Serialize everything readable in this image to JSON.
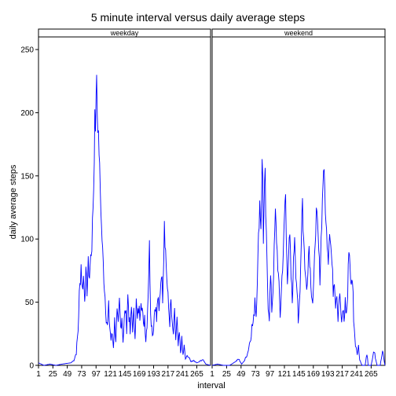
{
  "chart_data": {
    "type": "line",
    "title": "5 minute interval versus daily average steps",
    "xlabel": "interval",
    "ylabel": "daily average steps",
    "xlim": [
      1,
      288
    ],
    "ylim": [
      0,
      255
    ],
    "x_ticks": [
      1,
      25,
      49,
      73,
      97,
      121,
      145,
      169,
      193,
      217,
      241,
      265
    ],
    "y_ticks": [
      0,
      50,
      100,
      150,
      200,
      250
    ],
    "color": "#0000ff",
    "panels": [
      {
        "name": "weekday",
        "anchors": [
          [
            1,
            2
          ],
          [
            10,
            0
          ],
          [
            20,
            1
          ],
          [
            30,
            0
          ],
          [
            40,
            1
          ],
          [
            55,
            2
          ],
          [
            60,
            4
          ],
          [
            64,
            10
          ],
          [
            67,
            28
          ],
          [
            69,
            55
          ],
          [
            71,
            70
          ],
          [
            72,
            80
          ],
          [
            74,
            60
          ],
          [
            76,
            70
          ],
          [
            78,
            55
          ],
          [
            80,
            72
          ],
          [
            82,
            60
          ],
          [
            84,
            80
          ],
          [
            86,
            70
          ],
          [
            88,
            85
          ],
          [
            90,
            95
          ],
          [
            92,
            125
          ],
          [
            94,
            160
          ],
          [
            95,
            205
          ],
          [
            96,
            190
          ],
          [
            97,
            210
          ],
          [
            98,
            232
          ],
          [
            99,
            200
          ],
          [
            100,
            190
          ],
          [
            102,
            170
          ],
          [
            104,
            140
          ],
          [
            106,
            110
          ],
          [
            108,
            90
          ],
          [
            110,
            70
          ],
          [
            112,
            55
          ],
          [
            114,
            40
          ],
          [
            116,
            30
          ],
          [
            118,
            45
          ],
          [
            120,
            30
          ],
          [
            122,
            20
          ],
          [
            124,
            25
          ],
          [
            126,
            15
          ],
          [
            128,
            35
          ],
          [
            130,
            20
          ],
          [
            132,
            40
          ],
          [
            134,
            30
          ],
          [
            136,
            50
          ],
          [
            138,
            30
          ],
          [
            140,
            40
          ],
          [
            142,
            20
          ],
          [
            144,
            35
          ],
          [
            146,
            45
          ],
          [
            148,
            30
          ],
          [
            150,
            55
          ],
          [
            152,
            40
          ],
          [
            154,
            25
          ],
          [
            156,
            45
          ],
          [
            158,
            30
          ],
          [
            160,
            40
          ],
          [
            162,
            25
          ],
          [
            164,
            50
          ],
          [
            166,
            35
          ],
          [
            168,
            45
          ],
          [
            170,
            40
          ],
          [
            172,
            55
          ],
          [
            174,
            45
          ],
          [
            176,
            30
          ],
          [
            178,
            40
          ],
          [
            180,
            20
          ],
          [
            182,
            35
          ],
          [
            184,
            60
          ],
          [
            186,
            95
          ],
          [
            188,
            45
          ],
          [
            190,
            30
          ],
          [
            192,
            25
          ],
          [
            194,
            40
          ],
          [
            196,
            50
          ],
          [
            198,
            35
          ],
          [
            200,
            55
          ],
          [
            202,
            40
          ],
          [
            204,
            60
          ],
          [
            206,
            75
          ],
          [
            208,
            55
          ],
          [
            210,
            90
          ],
          [
            211,
            117
          ],
          [
            212,
            100
          ],
          [
            214,
            80
          ],
          [
            216,
            60
          ],
          [
            218,
            45
          ],
          [
            220,
            35
          ],
          [
            222,
            50
          ],
          [
            224,
            30
          ],
          [
            226,
            25
          ],
          [
            228,
            40
          ],
          [
            230,
            20
          ],
          [
            232,
            35
          ],
          [
            234,
            15
          ],
          [
            236,
            25
          ],
          [
            238,
            10
          ],
          [
            240,
            20
          ],
          [
            242,
            8
          ],
          [
            244,
            15
          ],
          [
            246,
            5
          ],
          [
            250,
            8
          ],
          [
            255,
            3
          ],
          [
            260,
            4
          ],
          [
            265,
            2
          ],
          [
            270,
            3
          ],
          [
            275,
            5
          ],
          [
            280,
            1
          ],
          [
            288,
            0
          ]
        ]
      },
      {
        "name": "weekend",
        "anchors": [
          [
            1,
            0
          ],
          [
            10,
            1
          ],
          [
            20,
            0
          ],
          [
            30,
            0
          ],
          [
            40,
            3
          ],
          [
            45,
            5
          ],
          [
            50,
            1
          ],
          [
            55,
            4
          ],
          [
            60,
            10
          ],
          [
            64,
            20
          ],
          [
            67,
            30
          ],
          [
            70,
            35
          ],
          [
            72,
            55
          ],
          [
            74,
            40
          ],
          [
            76,
            70
          ],
          [
            78,
            100
          ],
          [
            80,
            130
          ],
          [
            82,
            110
          ],
          [
            84,
            160
          ],
          [
            85,
            150
          ],
          [
            86,
            100
          ],
          [
            88,
            140
          ],
          [
            89,
            150
          ],
          [
            90,
            120
          ],
          [
            92,
            80
          ],
          [
            94,
            50
          ],
          [
            96,
            40
          ],
          [
            98,
            70
          ],
          [
            100,
            45
          ],
          [
            102,
            60
          ],
          [
            104,
            90
          ],
          [
            106,
            120
          ],
          [
            108,
            100
          ],
          [
            110,
            80
          ],
          [
            112,
            60
          ],
          [
            114,
            40
          ],
          [
            116,
            60
          ],
          [
            118,
            80
          ],
          [
            120,
            100
          ],
          [
            122,
            130
          ],
          [
            123,
            135
          ],
          [
            124,
            100
          ],
          [
            126,
            70
          ],
          [
            128,
            90
          ],
          [
            130,
            100
          ],
          [
            132,
            70
          ],
          [
            134,
            50
          ],
          [
            136,
            80
          ],
          [
            138,
            105
          ],
          [
            140,
            75
          ],
          [
            142,
            60
          ],
          [
            144,
            30
          ],
          [
            146,
            50
          ],
          [
            148,
            80
          ],
          [
            150,
            120
          ],
          [
            151,
            135
          ],
          [
            152,
            110
          ],
          [
            154,
            90
          ],
          [
            156,
            70
          ],
          [
            158,
            60
          ],
          [
            160,
            80
          ],
          [
            162,
            95
          ],
          [
            164,
            75
          ],
          [
            166,
            60
          ],
          [
            168,
            50
          ],
          [
            170,
            65
          ],
          [
            172,
            100
          ],
          [
            174,
            120
          ],
          [
            176,
            110
          ],
          [
            178,
            90
          ],
          [
            180,
            70
          ],
          [
            182,
            100
          ],
          [
            184,
            130
          ],
          [
            186,
            157
          ],
          [
            188,
            140
          ],
          [
            190,
            110
          ],
          [
            192,
            100
          ],
          [
            194,
            85
          ],
          [
            196,
            110
          ],
          [
            198,
            95
          ],
          [
            200,
            80
          ],
          [
            202,
            60
          ],
          [
            204,
            70
          ],
          [
            206,
            50
          ],
          [
            208,
            60
          ],
          [
            210,
            40
          ],
          [
            212,
            55
          ],
          [
            214,
            50
          ],
          [
            216,
            30
          ],
          [
            218,
            45
          ],
          [
            220,
            35
          ],
          [
            222,
            50
          ],
          [
            224,
            40
          ],
          [
            226,
            55
          ],
          [
            228,
            95
          ],
          [
            230,
            80
          ],
          [
            232,
            60
          ],
          [
            234,
            70
          ],
          [
            236,
            40
          ],
          [
            238,
            20
          ],
          [
            240,
            15
          ],
          [
            242,
            10
          ],
          [
            244,
            15
          ],
          [
            246,
            5
          ],
          [
            248,
            2
          ],
          [
            250,
            0
          ],
          [
            255,
            0
          ],
          [
            258,
            10
          ],
          [
            260,
            0
          ],
          [
            265,
            0
          ],
          [
            270,
            12
          ],
          [
            272,
            5
          ],
          [
            275,
            0
          ],
          [
            280,
            0
          ],
          [
            284,
            12
          ],
          [
            286,
            5
          ],
          [
            288,
            0
          ]
        ]
      }
    ]
  }
}
